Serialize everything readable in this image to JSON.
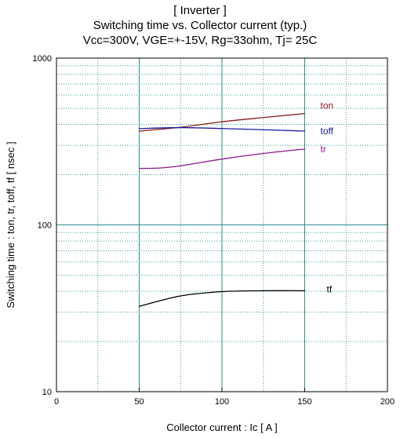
{
  "chart_data": {
    "type": "line",
    "title_lines": [
      "[ Inverter ]",
      "Switching time  vs.  Collector current  (typ.)",
      "Vcc=300V, VGE=+-15V, Rg=33ohm, Tj= 25C"
    ],
    "xlabel": "Collector current  :  Ic  [ A ]",
    "ylabel": "Switching time  :  ton, tr, toff, tf  [ nsec ]",
    "xlim": [
      0,
      200
    ],
    "ylim": [
      10,
      1000
    ],
    "yscale": "log",
    "x_ticks": [
      "0",
      "50",
      "100",
      "150",
      "200"
    ],
    "y_ticks": [
      "10",
      "100",
      "1000"
    ],
    "grid": true,
    "series": [
      {
        "name": "ton",
        "color": "#8b1a1a",
        "x": [
          50,
          75,
          100,
          125,
          150
        ],
        "y": [
          365,
          385,
          415,
          440,
          465
        ]
      },
      {
        "name": "toff",
        "color": "#1a1aa0",
        "x": [
          50,
          75,
          100,
          125,
          150
        ],
        "y": [
          378,
          383,
          378,
          372,
          365
        ]
      },
      {
        "name": "tr",
        "color": "#8b1a8b",
        "x": [
          50,
          62,
          75,
          100,
          125,
          150
        ],
        "y": [
          218,
          219,
          226,
          248,
          268,
          285
        ]
      },
      {
        "name": "tf",
        "color": "#000000",
        "x": [
          50,
          75,
          100,
          125,
          150
        ],
        "y": [
          32.5,
          37.5,
          39.8,
          40.3,
          40.3
        ]
      }
    ]
  }
}
